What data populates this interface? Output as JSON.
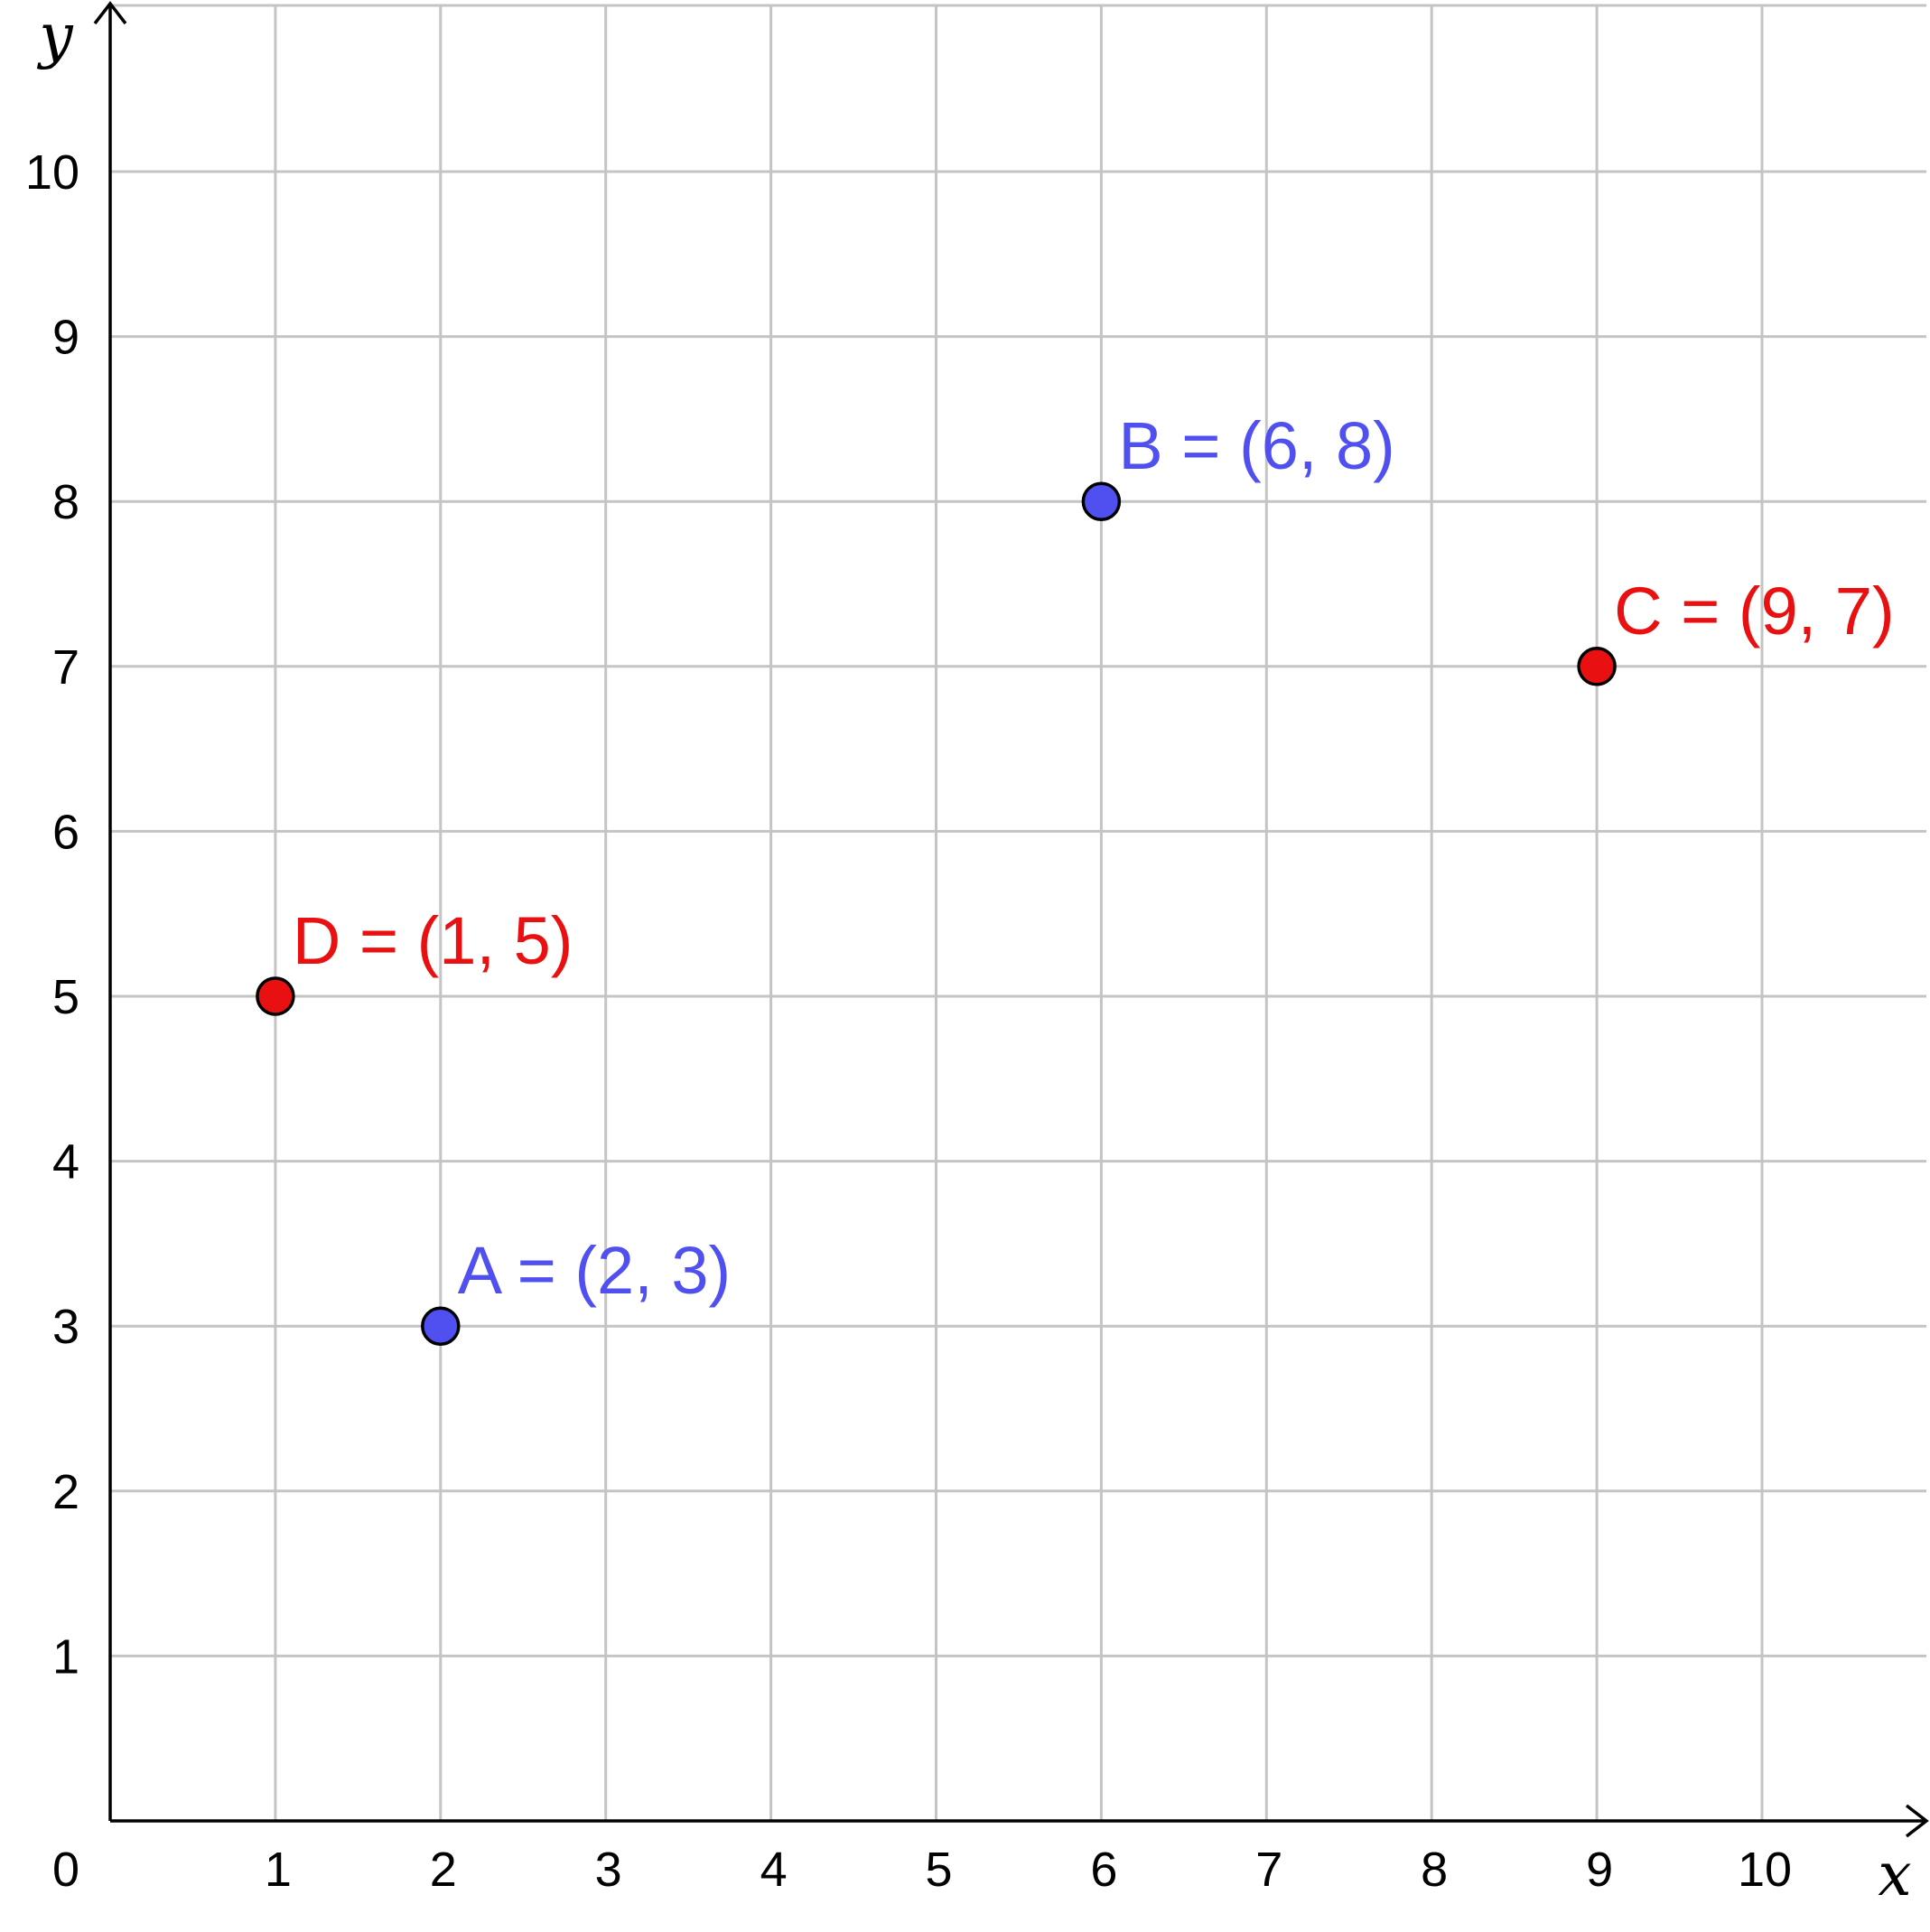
{
  "chart_data": {
    "type": "scatter",
    "xlim": [
      0,
      10
    ],
    "ylim": [
      0,
      10
    ],
    "xlabel": "x",
    "ylabel": "y",
    "grid": true,
    "x_ticks": [
      "1",
      "2",
      "3",
      "4",
      "5",
      "6",
      "7",
      "8",
      "9",
      "10"
    ],
    "y_ticks": [
      "1",
      "2",
      "3",
      "4",
      "5",
      "6",
      "7",
      "8",
      "9",
      "10"
    ],
    "origin_label": "0",
    "points": [
      {
        "id": "A",
        "label": "A = (2, 3)",
        "x": 2,
        "y": 3,
        "color": "#5050f0"
      },
      {
        "id": "B",
        "label": "B = (6, 8)",
        "x": 6,
        "y": 8,
        "color": "#5050f0"
      },
      {
        "id": "C",
        "label": "C = (9, 7)",
        "x": 9,
        "y": 7,
        "color": "#e81010"
      },
      {
        "id": "D",
        "label": "D = (1, 5)",
        "x": 1,
        "y": 5,
        "color": "#e81010"
      }
    ]
  }
}
